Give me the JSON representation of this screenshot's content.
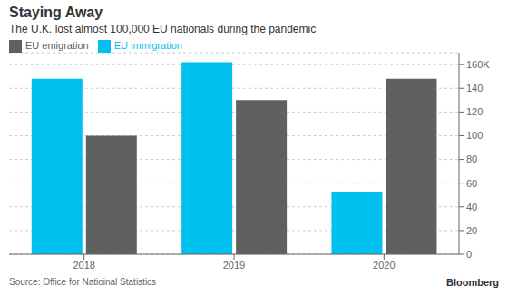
{
  "chart_data": {
    "type": "bar",
    "title": "Staying Away",
    "subtitle": "The U.K. lost almost 100,000 EU nationals during the pandemic",
    "categories": [
      "2018",
      "2019",
      "2020"
    ],
    "series": [
      {
        "name": "EU immigration",
        "color": "#00c0f0",
        "values": [
          148000,
          162000,
          52000
        ]
      },
      {
        "name": "EU emigration",
        "color": "#606060",
        "values": [
          100000,
          130000,
          148000
        ]
      }
    ],
    "ylim": [
      0,
      170000
    ],
    "yticks": [
      0,
      {
        "value": 20000,
        "label": "20"
      },
      {
        "value": 40000,
        "label": "40"
      },
      {
        "value": 60000,
        "label": "60"
      },
      {
        "value": 80000,
        "label": "80"
      },
      {
        "value": 100000,
        "label": "100"
      },
      {
        "value": 120000,
        "label": "120"
      },
      {
        "value": 140000,
        "label": "140"
      },
      {
        "value": 160000,
        "label": "160K"
      }
    ],
    "grid": true,
    "legend": "top-left",
    "annotations": [
      "Source: Office for Natioinal Statistics",
      "Bloomberg"
    ]
  }
}
